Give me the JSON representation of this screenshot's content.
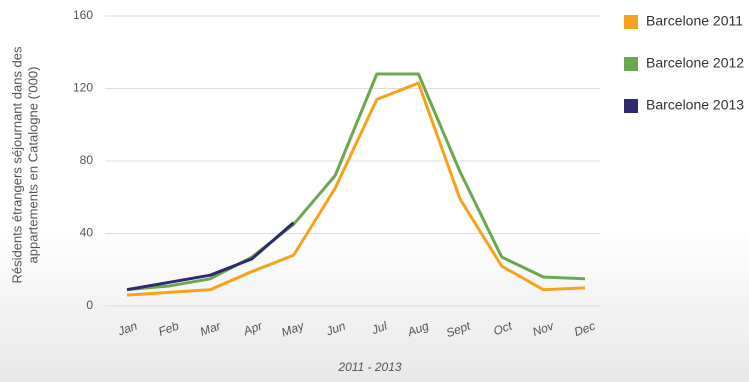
{
  "chart_data": {
    "type": "line",
    "x_label": "2011 - 2013",
    "y_label": [
      "Résidents étrangers séjournant dans des",
      "appartements en Catalogne ('000)"
    ],
    "categories": [
      "Jan",
      "Feb",
      "Mar",
      "Apr",
      "May",
      "Jun",
      "Jul",
      "Aug",
      "Sept",
      "Oct",
      "Nov",
      "Dec"
    ],
    "series": [
      {
        "name": "Barcelone 2011",
        "color": "#f7a21b",
        "values": [
          6,
          7.5,
          9,
          19,
          28,
          65,
          114,
          123,
          59,
          22,
          9,
          10
        ]
      },
      {
        "name": "Barcelone 2012",
        "color": "#6aa84f",
        "values": [
          9,
          11,
          15,
          27,
          45,
          72,
          128,
          128,
          74,
          27,
          16,
          15
        ]
      },
      {
        "name": "Barcelone 2013",
        "color": "#2e2a6b",
        "values": [
          9,
          13,
          17,
          26,
          46,
          null,
          null,
          null,
          null,
          null,
          null,
          null
        ]
      }
    ],
    "ylim": [
      0,
      160
    ],
    "yticks": [
      0,
      40,
      80,
      120,
      160
    ],
    "grid": true,
    "legend": "right"
  }
}
